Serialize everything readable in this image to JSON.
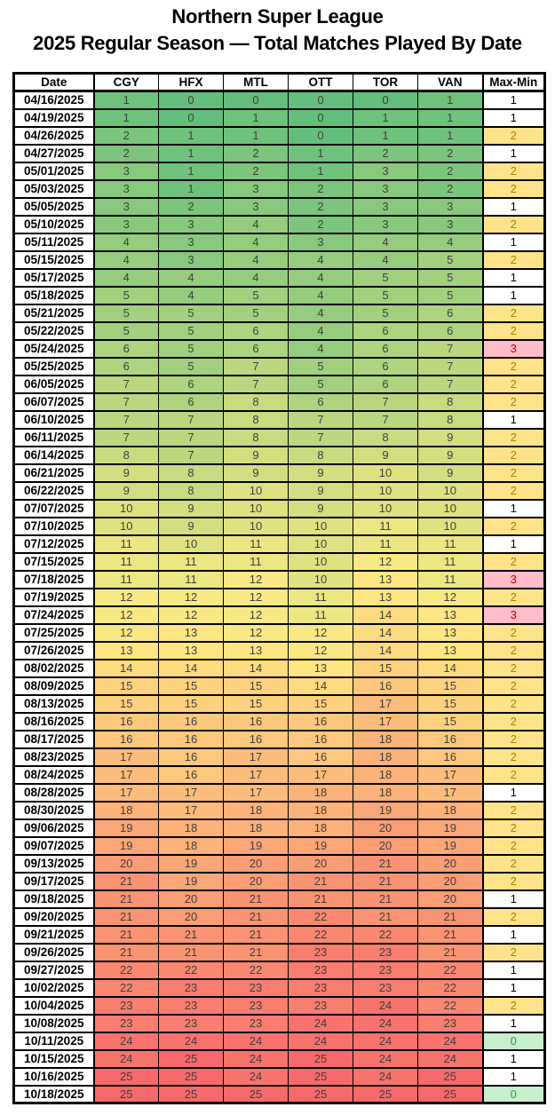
{
  "header": {
    "title": "Northern Super League",
    "subtitle": "2025 Regular Season — Total Matches Played By Date"
  },
  "chart_data": {
    "type": "heatmap",
    "title": "Northern Super League",
    "subtitle": "2025 Regular Season — Total Matches Played By Date",
    "row_label_header": "Date",
    "columns": [
      "CGY",
      "HFX",
      "MTL",
      "OTT",
      "TOR",
      "VAN"
    ],
    "derived_column": "Max-Min",
    "color_scale": {
      "min": 0,
      "mid": 12.5,
      "max": 25,
      "min_color": "#63BE7B",
      "mid_color": "#FFEB84",
      "max_color": "#F8696B"
    },
    "maxmin_styles": {
      "0": {
        "bg": "#C6EFCE",
        "fg": "#3A9B3A"
      },
      "1": {
        "bg": "#FFFFFF",
        "fg": "#000000"
      },
      "2": {
        "bg": "#FFE38A",
        "fg": "#AD7F00"
      },
      "3": {
        "bg": "#FFBCC9",
        "fg": "#C00000"
      }
    },
    "rows": [
      {
        "date": "04/16/2025",
        "values": [
          1,
          0,
          0,
          0,
          0,
          1
        ],
        "max_min": 1
      },
      {
        "date": "04/19/2025",
        "values": [
          1,
          0,
          1,
          0,
          1,
          1
        ],
        "max_min": 1
      },
      {
        "date": "04/26/2025",
        "values": [
          2,
          1,
          1,
          0,
          1,
          1
        ],
        "max_min": 2
      },
      {
        "date": "04/27/2025",
        "values": [
          2,
          1,
          2,
          1,
          2,
          2
        ],
        "max_min": 1
      },
      {
        "date": "05/01/2025",
        "values": [
          3,
          1,
          2,
          1,
          3,
          2
        ],
        "max_min": 2
      },
      {
        "date": "05/03/2025",
        "values": [
          3,
          1,
          3,
          2,
          3,
          2
        ],
        "max_min": 2
      },
      {
        "date": "05/05/2025",
        "values": [
          3,
          2,
          3,
          2,
          3,
          3
        ],
        "max_min": 1
      },
      {
        "date": "05/10/2025",
        "values": [
          3,
          3,
          4,
          2,
          3,
          3
        ],
        "max_min": 2
      },
      {
        "date": "05/11/2025",
        "values": [
          4,
          3,
          4,
          3,
          4,
          4
        ],
        "max_min": 1
      },
      {
        "date": "05/15/2025",
        "values": [
          4,
          3,
          4,
          4,
          4,
          5
        ],
        "max_min": 2
      },
      {
        "date": "05/17/2025",
        "values": [
          4,
          4,
          4,
          4,
          5,
          5
        ],
        "max_min": 1
      },
      {
        "date": "05/18/2025",
        "values": [
          5,
          4,
          5,
          4,
          5,
          5
        ],
        "max_min": 1
      },
      {
        "date": "05/21/2025",
        "values": [
          5,
          5,
          5,
          4,
          5,
          6
        ],
        "max_min": 2
      },
      {
        "date": "05/22/2025",
        "values": [
          5,
          5,
          6,
          4,
          6,
          6
        ],
        "max_min": 2
      },
      {
        "date": "05/24/2025",
        "values": [
          6,
          5,
          6,
          4,
          6,
          7
        ],
        "max_min": 3
      },
      {
        "date": "05/25/2025",
        "values": [
          6,
          5,
          7,
          5,
          6,
          7
        ],
        "max_min": 2
      },
      {
        "date": "06/05/2025",
        "values": [
          7,
          6,
          7,
          5,
          6,
          7
        ],
        "max_min": 2
      },
      {
        "date": "06/07/2025",
        "values": [
          7,
          6,
          8,
          6,
          7,
          8
        ],
        "max_min": 2
      },
      {
        "date": "06/10/2025",
        "values": [
          7,
          7,
          8,
          7,
          7,
          8
        ],
        "max_min": 1
      },
      {
        "date": "06/11/2025",
        "values": [
          7,
          7,
          8,
          7,
          8,
          9
        ],
        "max_min": 2
      },
      {
        "date": "06/14/2025",
        "values": [
          8,
          7,
          9,
          8,
          9,
          9
        ],
        "max_min": 2
      },
      {
        "date": "06/21/2025",
        "values": [
          9,
          8,
          9,
          9,
          10,
          9
        ],
        "max_min": 2
      },
      {
        "date": "06/22/2025",
        "values": [
          9,
          8,
          10,
          9,
          10,
          10
        ],
        "max_min": 2
      },
      {
        "date": "07/07/2025",
        "values": [
          10,
          9,
          10,
          9,
          10,
          10
        ],
        "max_min": 1
      },
      {
        "date": "07/10/2025",
        "values": [
          10,
          9,
          10,
          10,
          11,
          10
        ],
        "max_min": 2
      },
      {
        "date": "07/12/2025",
        "values": [
          11,
          10,
          11,
          10,
          11,
          11
        ],
        "max_min": 1
      },
      {
        "date": "07/15/2025",
        "values": [
          11,
          11,
          11,
          10,
          12,
          11
        ],
        "max_min": 2
      },
      {
        "date": "07/18/2025",
        "values": [
          11,
          11,
          12,
          10,
          13,
          11
        ],
        "max_min": 3
      },
      {
        "date": "07/19/2025",
        "values": [
          12,
          12,
          12,
          11,
          13,
          12
        ],
        "max_min": 2
      },
      {
        "date": "07/24/2025",
        "values": [
          12,
          12,
          12,
          11,
          14,
          13
        ],
        "max_min": 3
      },
      {
        "date": "07/25/2025",
        "values": [
          12,
          13,
          12,
          12,
          14,
          13
        ],
        "max_min": 2
      },
      {
        "date": "07/26/2025",
        "values": [
          13,
          13,
          13,
          12,
          14,
          13
        ],
        "max_min": 2
      },
      {
        "date": "08/02/2025",
        "values": [
          14,
          14,
          14,
          13,
          15,
          14
        ],
        "max_min": 2
      },
      {
        "date": "08/09/2025",
        "values": [
          15,
          15,
          15,
          14,
          16,
          15
        ],
        "max_min": 2
      },
      {
        "date": "08/13/2025",
        "values": [
          15,
          15,
          15,
          15,
          17,
          15
        ],
        "max_min": 2
      },
      {
        "date": "08/16/2025",
        "values": [
          16,
          16,
          16,
          16,
          17,
          15
        ],
        "max_min": 2
      },
      {
        "date": "08/17/2025",
        "values": [
          16,
          16,
          16,
          16,
          18,
          16
        ],
        "max_min": 2
      },
      {
        "date": "08/23/2025",
        "values": [
          17,
          16,
          17,
          16,
          18,
          16
        ],
        "max_min": 2
      },
      {
        "date": "08/24/2025",
        "values": [
          17,
          16,
          17,
          17,
          18,
          17
        ],
        "max_min": 2
      },
      {
        "date": "08/28/2025",
        "values": [
          17,
          17,
          17,
          18,
          18,
          17
        ],
        "max_min": 1
      },
      {
        "date": "08/30/2025",
        "values": [
          18,
          17,
          18,
          18,
          19,
          18
        ],
        "max_min": 2
      },
      {
        "date": "09/06/2025",
        "values": [
          19,
          18,
          18,
          18,
          20,
          19
        ],
        "max_min": 2
      },
      {
        "date": "09/07/2025",
        "values": [
          19,
          18,
          19,
          19,
          20,
          19
        ],
        "max_min": 2
      },
      {
        "date": "09/13/2025",
        "values": [
          20,
          19,
          20,
          20,
          21,
          20
        ],
        "max_min": 2
      },
      {
        "date": "09/17/2025",
        "values": [
          21,
          19,
          20,
          21,
          21,
          20
        ],
        "max_min": 2
      },
      {
        "date": "09/18/2025",
        "values": [
          21,
          20,
          21,
          21,
          21,
          20
        ],
        "max_min": 1
      },
      {
        "date": "09/20/2025",
        "values": [
          21,
          20,
          21,
          22,
          21,
          21
        ],
        "max_min": 2
      },
      {
        "date": "09/21/2025",
        "values": [
          21,
          21,
          21,
          22,
          22,
          21
        ],
        "max_min": 1
      },
      {
        "date": "09/26/2025",
        "values": [
          21,
          21,
          21,
          23,
          23,
          21
        ],
        "max_min": 2
      },
      {
        "date": "09/27/2025",
        "values": [
          22,
          22,
          22,
          23,
          23,
          22
        ],
        "max_min": 1
      },
      {
        "date": "10/02/2025",
        "values": [
          22,
          23,
          23,
          23,
          23,
          22
        ],
        "max_min": 1
      },
      {
        "date": "10/04/2025",
        "values": [
          23,
          23,
          23,
          23,
          24,
          22
        ],
        "max_min": 2
      },
      {
        "date": "10/08/2025",
        "values": [
          23,
          23,
          23,
          24,
          24,
          23
        ],
        "max_min": 1
      },
      {
        "date": "10/11/2025",
        "values": [
          24,
          24,
          24,
          24,
          24,
          24
        ],
        "max_min": 0
      },
      {
        "date": "10/15/2025",
        "values": [
          24,
          25,
          24,
          25,
          24,
          24
        ],
        "max_min": 1
      },
      {
        "date": "10/16/2025",
        "values": [
          25,
          25,
          24,
          25,
          24,
          25
        ],
        "max_min": 1
      },
      {
        "date": "10/18/2025",
        "values": [
          25,
          25,
          25,
          25,
          25,
          25
        ],
        "max_min": 0
      }
    ]
  }
}
